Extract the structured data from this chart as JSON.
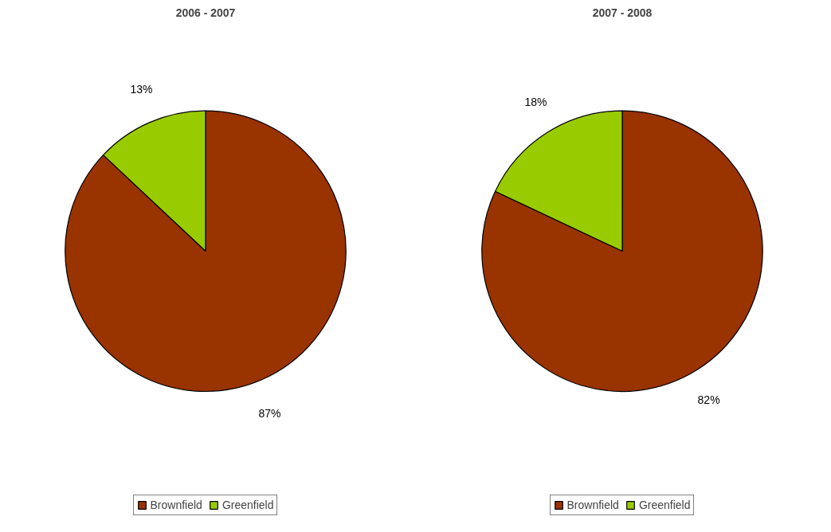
{
  "chart_data": [
    {
      "type": "pie",
      "title": "2006 - 2007",
      "categories": [
        "Brownfield",
        "Greenfield"
      ],
      "values": [
        87,
        13
      ],
      "colors": [
        "#993300",
        "#99cc00"
      ],
      "value_labels": [
        "87%",
        "13%"
      ],
      "legend": "bottom"
    },
    {
      "type": "pie",
      "title": "2007 - 2008",
      "categories": [
        "Brownfield",
        "Greenfield"
      ],
      "values": [
        82,
        18
      ],
      "colors": [
        "#993300",
        "#99cc00"
      ],
      "value_labels": [
        "82%",
        "18%"
      ],
      "legend": "bottom"
    }
  ]
}
